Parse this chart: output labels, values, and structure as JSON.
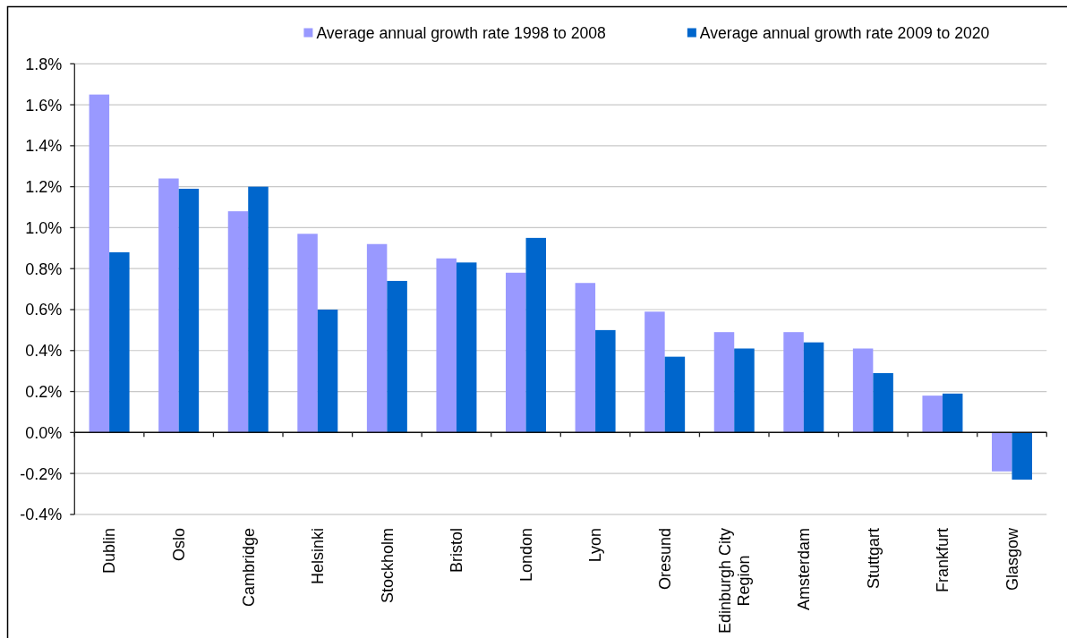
{
  "chart_data": {
    "type": "bar",
    "categories": [
      "Dublin",
      "Oslo",
      "Cambridge",
      "Helsinki",
      "Stockholm",
      "Bristol",
      "London",
      "Lyon",
      "Oresund",
      "Edinburgh City Region",
      "Amsterdam",
      "Stuttgart",
      "Frankfurt",
      "Glasgow"
    ],
    "series": [
      {
        "name": "Average annual growth rate 1998 to 2008",
        "color": "#9999ff",
        "values": [
          1.65,
          1.24,
          1.08,
          0.97,
          0.92,
          0.85,
          0.78,
          0.73,
          0.59,
          0.49,
          0.49,
          0.41,
          0.18,
          -0.19
        ]
      },
      {
        "name": "Average annual growth rate 2009 to 2020",
        "color": "#0066cc",
        "values": [
          0.88,
          1.19,
          1.2,
          0.6,
          0.74,
          0.83,
          0.95,
          0.5,
          0.37,
          0.41,
          0.44,
          0.29,
          0.19,
          -0.23
        ]
      }
    ],
    "ylim": [
      -0.4,
      1.8
    ],
    "yticks": [
      {
        "value": -0.4,
        "label": "-0.4%"
      },
      {
        "value": -0.2,
        "label": "-0.2%"
      },
      {
        "value": 0,
        "label": "0.0%"
      },
      {
        "value": 0.2,
        "label": "0.2%"
      },
      {
        "value": 0.4,
        "label": "0.4%"
      },
      {
        "value": 0.6,
        "label": "0.6%"
      },
      {
        "value": 0.8,
        "label": "0.8%"
      },
      {
        "value": 1,
        "label": "1.0%"
      },
      {
        "value": 1.2,
        "label": "1.2%"
      },
      {
        "value": 1.4,
        "label": "1.4%"
      },
      {
        "value": 1.6,
        "label": "1.6%"
      },
      {
        "value": 1.8,
        "label": "1.8%"
      }
    ],
    "grid": "y",
    "legend": "top right"
  }
}
